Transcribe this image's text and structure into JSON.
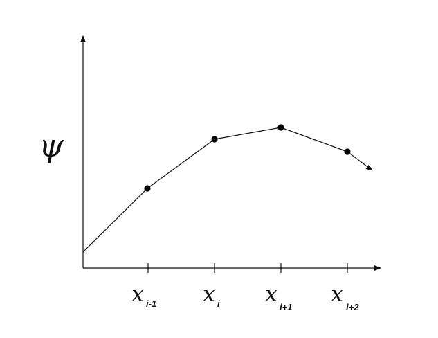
{
  "diagram": {
    "y_label": "ψ",
    "ticks": [
      {
        "base": "x",
        "sub": "i-1"
      },
      {
        "base": "x",
        "sub": "i"
      },
      {
        "base": "x",
        "sub": "i+1"
      },
      {
        "base": "x",
        "sub": "i+2"
      }
    ],
    "colors": {
      "stroke": "#111111",
      "point": "#000000"
    }
  }
}
